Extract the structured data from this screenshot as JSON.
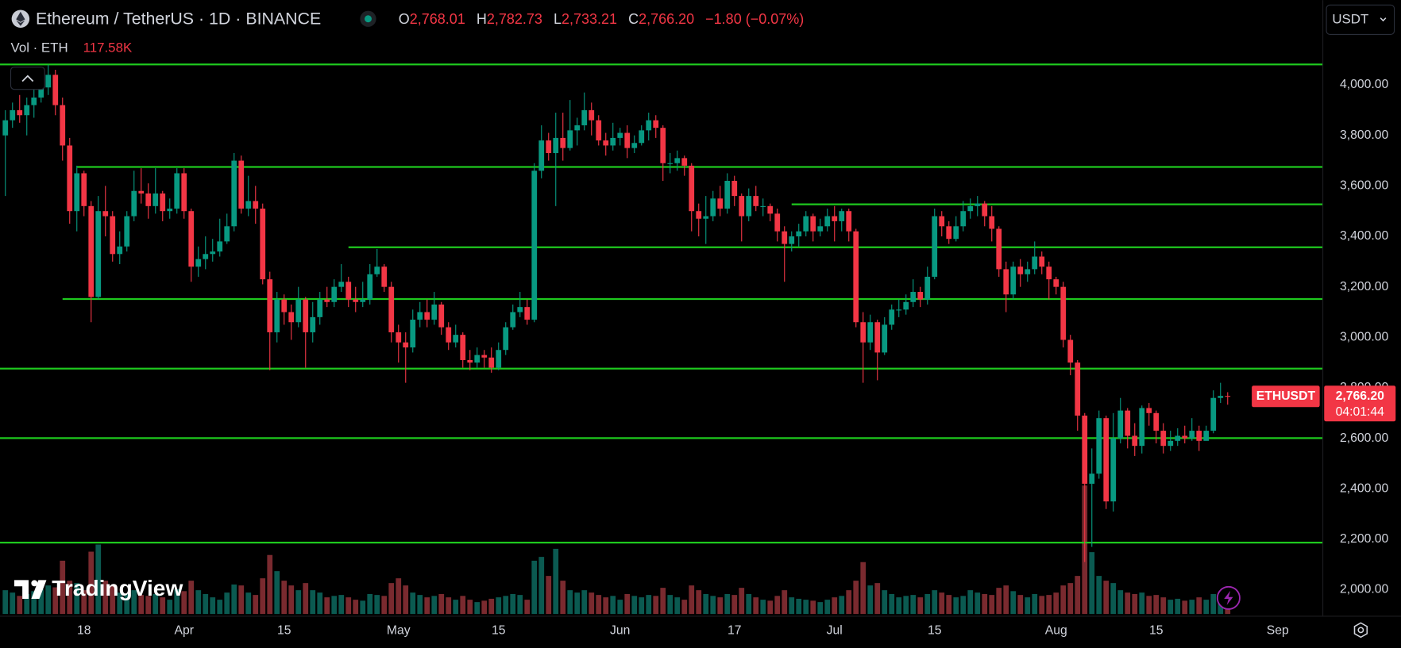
{
  "header": {
    "symbol": "Ethereum / TetherUS · 1D · BINANCE",
    "ohlc": [
      {
        "label": "O",
        "value": "2,768.01"
      },
      {
        "label": "H",
        "value": "2,782.73"
      },
      {
        "label": "L",
        "value": "2,733.21"
      },
      {
        "label": "C",
        "value": "2,766.20"
      }
    ],
    "change": "−1.80 (−0.07%)",
    "volume_label": "Vol · ETH",
    "volume_value": "117.58K",
    "currency": "USDT"
  },
  "price_tag": {
    "symbol": "ETHUSDT",
    "price": "2,766.20",
    "countdown": "04:01:44"
  },
  "brand": "TradingView",
  "chart_data": {
    "type": "candlestick",
    "x": [
      0,
      1,
      2,
      3,
      4,
      5,
      6,
      7,
      8,
      9,
      10,
      11,
      12,
      13,
      14,
      15,
      16,
      17,
      18,
      19,
      20,
      21,
      22,
      23,
      24,
      25,
      26,
      27,
      28,
      29,
      30,
      31,
      32,
      33,
      34,
      35,
      36,
      37,
      38,
      39,
      40,
      41,
      42,
      43,
      44,
      45,
      46,
      47,
      48,
      49,
      50,
      51,
      52,
      53,
      54,
      55,
      56,
      57,
      58,
      59,
      60,
      61,
      62,
      63,
      64,
      65,
      66,
      67,
      68,
      69,
      70,
      71,
      72,
      73,
      74,
      75,
      76,
      77,
      78,
      79,
      80,
      81,
      82,
      83,
      84,
      85,
      86,
      87,
      88,
      89,
      90,
      91,
      92,
      93,
      94,
      95,
      96,
      97,
      98,
      99,
      100,
      101,
      102,
      103,
      104,
      105,
      106,
      107,
      108,
      109,
      110,
      111,
      112,
      113,
      114,
      115,
      116,
      117,
      118,
      119,
      120,
      121,
      122,
      123,
      124,
      125,
      126,
      127,
      128,
      129,
      130,
      131,
      132,
      133,
      134,
      135,
      136,
      137,
      138,
      139,
      140,
      141,
      142,
      143,
      144,
      145,
      146,
      147,
      148,
      149,
      150,
      151,
      152,
      153,
      154,
      155,
      156,
      157,
      158,
      159,
      160,
      161,
      162,
      163,
      164,
      165,
      166,
      167,
      168,
      169,
      170,
      171
    ],
    "open": [
      3800,
      3860,
      3900,
      3880,
      3920,
      3950,
      3990,
      4040,
      3920,
      3760,
      3500,
      3650,
      3520,
      3160,
      3500,
      3480,
      3330,
      3360,
      3480,
      3580,
      3570,
      3520,
      3570,
      3500,
      3510,
      3650,
      3500,
      3280,
      3310,
      3330,
      3340,
      3380,
      3440,
      3700,
      3510,
      3540,
      3510,
      3230,
      3020,
      3150,
      3100,
      3060,
      3150,
      3020,
      3080,
      3150,
      3140,
      3200,
      3220,
      3150,
      3140,
      3150,
      3250,
      3280,
      3200,
      3020,
      2980,
      2960,
      3070,
      3100,
      3070,
      3130,
      3040,
      2980,
      3010,
      2910,
      2900,
      2930,
      2920,
      2880,
      2950,
      3040,
      3100,
      3120,
      3070,
      3660,
      3780,
      3730,
      3790,
      3750,
      3820,
      3840,
      3900,
      3860,
      3780,
      3760,
      3790,
      3810,
      3750,
      3770,
      3820,
      3860,
      3830,
      3690,
      3690,
      3710,
      3680,
      3500,
      3470,
      3480,
      3550,
      3510,
      3620,
      3560,
      3480,
      3560,
      3520,
      3520,
      3490,
      3420,
      3370,
      3400,
      3420,
      3480,
      3420,
      3440,
      3480,
      3460,
      3500,
      3420,
      3060,
      2980,
      3060,
      2940,
      3050,
      3110,
      3110,
      3140,
      3180,
      3150,
      3240,
      3480,
      3440,
      3390,
      3440,
      3500,
      3520,
      3530,
      3480,
      3430,
      3270,
      3170,
      3280,
      3250,
      3270,
      3320,
      3280,
      3230,
      3200,
      2990,
      2900,
      2690,
      2420,
      2460,
      2680,
      2350,
      2600,
      2710,
      2610,
      2570,
      2720,
      2700,
      2630,
      2570,
      2590,
      2610,
      2600,
      2630,
      2590,
      2630,
      2760,
      2768.01
    ],
    "close": [
      3860,
      3900,
      3880,
      3920,
      3950,
      3990,
      4040,
      3920,
      3760,
      3500,
      3650,
      3520,
      3160,
      3500,
      3480,
      3330,
      3360,
      3480,
      3580,
      3570,
      3520,
      3570,
      3500,
      3510,
      3650,
      3500,
      3280,
      3310,
      3330,
      3340,
      3380,
      3440,
      3700,
      3510,
      3540,
      3510,
      3230,
      3020,
      3150,
      3100,
      3060,
      3150,
      3020,
      3080,
      3150,
      3140,
      3200,
      3220,
      3150,
      3140,
      3150,
      3250,
      3280,
      3200,
      3020,
      2980,
      2960,
      3070,
      3100,
      3070,
      3130,
      3040,
      2980,
      3010,
      2910,
      2900,
      2930,
      2920,
      2880,
      2950,
      3040,
      3100,
      3120,
      3070,
      3660,
      3780,
      3730,
      3790,
      3750,
      3820,
      3840,
      3900,
      3860,
      3780,
      3760,
      3790,
      3810,
      3750,
      3770,
      3820,
      3860,
      3830,
      3690,
      3690,
      3710,
      3680,
      3500,
      3470,
      3480,
      3550,
      3510,
      3620,
      3560,
      3480,
      3560,
      3520,
      3520,
      3490,
      3420,
      3370,
      3400,
      3420,
      3480,
      3420,
      3440,
      3480,
      3460,
      3500,
      3420,
      3060,
      2980,
      3060,
      2940,
      3050,
      3110,
      3110,
      3140,
      3180,
      3150,
      3240,
      3480,
      3440,
      3390,
      3440,
      3500,
      3520,
      3530,
      3480,
      3430,
      3270,
      3170,
      3280,
      3250,
      3270,
      3320,
      3280,
      3230,
      3200,
      2990,
      2900,
      2690,
      2420,
      2460,
      2680,
      2350,
      2600,
      2710,
      2610,
      2570,
      2720,
      2700,
      2630,
      2570,
      2590,
      2610,
      2600,
      2630,
      2590,
      2630,
      2760,
      2768.01,
      2766.2
    ],
    "high": [
      3900,
      3930,
      3960,
      3950,
      3990,
      4070,
      4080,
      4060,
      3950,
      3790,
      3680,
      3660,
      3540,
      3560,
      3600,
      3500,
      3420,
      3500,
      3660,
      3670,
      3610,
      3670,
      3580,
      3550,
      3670,
      3670,
      3510,
      3360,
      3400,
      3390,
      3470,
      3490,
      3730,
      3720,
      3640,
      3600,
      3530,
      3260,
      3180,
      3170,
      3130,
      3200,
      3160,
      3140,
      3180,
      3200,
      3230,
      3290,
      3240,
      3200,
      3220,
      3290,
      3350,
      3290,
      3220,
      3050,
      3020,
      3110,
      3140,
      3150,
      3180,
      3140,
      3060,
      3050,
      3020,
      2950,
      2960,
      2950,
      2960,
      2980,
      3060,
      3130,
      3180,
      3150,
      3690,
      3840,
      3810,
      3890,
      3890,
      3940,
      3870,
      3970,
      3930,
      3880,
      3810,
      3850,
      3830,
      3840,
      3800,
      3840,
      3890,
      3880,
      3840,
      3730,
      3740,
      3720,
      3690,
      3530,
      3560,
      3580,
      3600,
      3650,
      3640,
      3570,
      3590,
      3600,
      3550,
      3530,
      3510,
      3440,
      3420,
      3450,
      3500,
      3490,
      3470,
      3510,
      3520,
      3510,
      3510,
      3430,
      3100,
      3090,
      3070,
      3080,
      3130,
      3150,
      3170,
      3230,
      3200,
      3280,
      3510,
      3500,
      3460,
      3480,
      3540,
      3550,
      3560,
      3540,
      3520,
      3440,
      3300,
      3300,
      3310,
      3300,
      3380,
      3340,
      3300,
      3240,
      3220,
      3010,
      2910,
      2700,
      2560,
      2710,
      2690,
      2700,
      2760,
      2720,
      2660,
      2730,
      2740,
      2710,
      2660,
      2630,
      2640,
      2650,
      2680,
      2650,
      2650,
      2790,
      2820,
      2782.73
    ],
    "low": [
      3560,
      3830,
      3850,
      3800,
      3870,
      3930,
      3960,
      3880,
      3700,
      3450,
      3420,
      3480,
      3060,
      3150,
      3400,
      3300,
      3290,
      3340,
      3460,
      3530,
      3470,
      3490,
      3460,
      3470,
      3490,
      3470,
      3220,
      3240,
      3270,
      3300,
      3320,
      3370,
      3420,
      3490,
      3480,
      3450,
      3210,
      2870,
      2980,
      3050,
      2990,
      3040,
      2880,
      2980,
      3050,
      3120,
      3120,
      3180,
      3120,
      3100,
      3120,
      3130,
      3240,
      3180,
      2980,
      2900,
      2820,
      2940,
      3040,
      3040,
      3050,
      3010,
      2950,
      2960,
      2880,
      2870,
      2880,
      2880,
      2860,
      2870,
      2930,
      3030,
      3080,
      3050,
      3060,
      3630,
      3700,
      3520,
      3700,
      3740,
      3760,
      3820,
      3800,
      3760,
      3720,
      3740,
      3760,
      3710,
      3730,
      3760,
      3780,
      3790,
      3620,
      3650,
      3660,
      3640,
      3420,
      3400,
      3370,
      3460,
      3480,
      3490,
      3520,
      3380,
      3460,
      3500,
      3480,
      3460,
      3380,
      3220,
      3340,
      3360,
      3400,
      3380,
      3400,
      3420,
      3380,
      3420,
      3380,
      3040,
      2820,
      2950,
      2830,
      2930,
      3030,
      3080,
      3090,
      3120,
      3120,
      3130,
      3230,
      3400,
      3370,
      3380,
      3420,
      3470,
      3480,
      3440,
      3380,
      3240,
      3100,
      3150,
      3200,
      3220,
      3250,
      3250,
      3150,
      3170,
      2960,
      2850,
      2630,
      2110,
      2170,
      2440,
      2320,
      2310,
      2580,
      2560,
      2530,
      2540,
      2650,
      2580,
      2540,
      2550,
      2570,
      2580,
      2590,
      2550,
      2600,
      2620,
      2740,
      2733.21
    ],
    "volume": [
      500,
      450,
      380,
      420,
      480,
      520,
      600,
      560,
      1120,
      700,
      650,
      500,
      1310,
      1460,
      700,
      600,
      450,
      420,
      500,
      400,
      380,
      420,
      350,
      300,
      520,
      480,
      700,
      500,
      420,
      350,
      300,
      450,
      620,
      600,
      450,
      400,
      750,
      1240,
      900,
      700,
      600,
      500,
      650,
      500,
      450,
      350,
      380,
      400,
      350,
      300,
      280,
      420,
      400,
      380,
      650,
      750,
      600,
      450,
      400,
      350,
      380,
      420,
      350,
      300,
      380,
      300,
      250,
      280,
      320,
      350,
      380,
      420,
      400,
      300,
      1120,
      1200,
      800,
      1370,
      700,
      500,
      450,
      500,
      450,
      400,
      350,
      380,
      300,
      420,
      380,
      350,
      400,
      380,
      550,
      400,
      350,
      300,
      600,
      500,
      420,
      380,
      350,
      420,
      400,
      550,
      420,
      350,
      300,
      280,
      380,
      500,
      350,
      320,
      300,
      280,
      250,
      300,
      350,
      380,
      500,
      700,
      1090,
      600,
      650,
      500,
      420,
      350,
      380,
      400,
      350,
      420,
      500,
      450,
      400,
      350,
      380,
      500,
      450,
      420,
      400,
      550,
      600,
      480,
      400,
      350,
      420,
      380,
      400,
      450,
      600,
      650,
      800,
      2700,
      1300,
      800,
      700,
      650,
      500,
      450,
      420,
      450,
      380,
      400,
      350,
      300,
      320,
      280,
      300,
      350,
      300,
      420,
      380,
      117.58
    ],
    "volume_ylim": [
      0,
      1500
    ],
    "xlim": [
      -0.75,
      184.25
    ],
    "xticks": [
      {
        "value": 11,
        "label": "18"
      },
      {
        "value": 25,
        "label": "Apr"
      },
      {
        "value": 39,
        "label": "15"
      },
      {
        "value": 55,
        "label": "May"
      },
      {
        "value": 69,
        "label": "15"
      },
      {
        "value": 86,
        "label": "Jun"
      },
      {
        "value": 102,
        "label": "17"
      },
      {
        "value": 116,
        "label": "Jul"
      },
      {
        "value": 130,
        "label": "15"
      },
      {
        "value": 147,
        "label": "Aug"
      },
      {
        "value": 161,
        "label": "15"
      },
      {
        "value": 178,
        "label": "Sep"
      }
    ],
    "ylim": [
      1897,
      4336
    ],
    "yticks": [
      {
        "value": 2000,
        "label": "2,000.00"
      },
      {
        "value": 2200,
        "label": "2,200.00"
      },
      {
        "value": 2400,
        "label": "2,400.00"
      },
      {
        "value": 2600,
        "label": "2,600.00"
      },
      {
        "value": 2800,
        "label": "2,800.00"
      },
      {
        "value": 3000,
        "label": "3,000.00"
      },
      {
        "value": 3200,
        "label": "3,200.00"
      },
      {
        "value": 3400,
        "label": "3,400.00"
      },
      {
        "value": 3600,
        "label": "3,600.00"
      },
      {
        "value": 3800,
        "label": "3,800.00"
      },
      {
        "value": 4000,
        "label": "4,000.00"
      }
    ],
    "levels": [
      {
        "value": 4081
      },
      {
        "value": 3675,
        "start": 10
      },
      {
        "value": 3527,
        "start": 110
      },
      {
        "value": 3357,
        "start": 48
      },
      {
        "value": 3152,
        "start": 8
      },
      {
        "value": 2876
      },
      {
        "value": 2601
      },
      {
        "value": 2187
      }
    ],
    "grid": false,
    "up_color": "#089981",
    "down_color": "#f23645",
    "volume_up_color": "#0b5a51",
    "volume_down_color": "#7a2a2f",
    "level_color": "#1ec81e"
  }
}
